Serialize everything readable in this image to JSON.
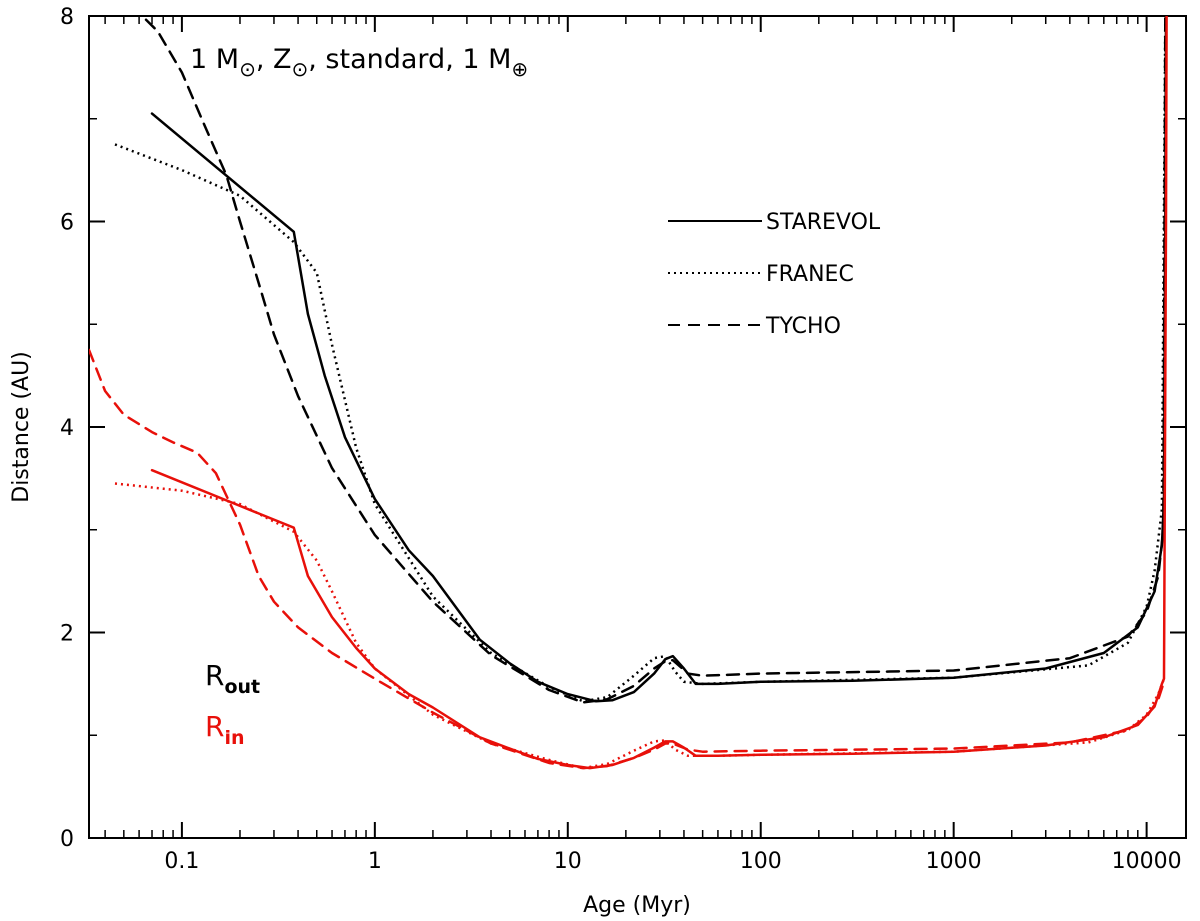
{
  "chart_data": {
    "type": "line",
    "title": {
      "main": "1 M",
      "sub1": "⊙",
      "sep1": ", Z",
      "sub2": "⊙",
      "sep2": ", standard, 1 M",
      "sub3": "⊕"
    },
    "xlabel": "Age (Myr)",
    "ylabel": "Distance (AU)",
    "xscale": "log",
    "xlim": [
      0.033,
      16000
    ],
    "ylim": [
      0,
      8
    ],
    "x_ticks": [
      {
        "value": 0.1,
        "label": "0.1"
      },
      {
        "value": 1,
        "label": "1"
      },
      {
        "value": 10,
        "label": "10"
      },
      {
        "value": 100,
        "label": "100"
      },
      {
        "value": 1000,
        "label": "1000"
      },
      {
        "value": 10000,
        "label": "10000"
      }
    ],
    "y_ticks": [
      {
        "value": 0,
        "label": "0"
      },
      {
        "value": 2,
        "label": "2"
      },
      {
        "value": 4,
        "label": "4"
      },
      {
        "value": 6,
        "label": "6"
      },
      {
        "value": 8,
        "label": "8"
      }
    ],
    "grid": false,
    "legend": {
      "placement": "top-right",
      "entries": [
        {
          "label": "STAREVOL",
          "dash": "solid"
        },
        {
          "label": "FRANEC",
          "dash": "dotted"
        },
        {
          "label": "TYCHO",
          "dash": "dashed"
        }
      ]
    },
    "group_labels": [
      {
        "main": "R",
        "sub": "out",
        "color": "#000000"
      },
      {
        "main": "R",
        "sub": "in",
        "color": "#e8100a"
      }
    ],
    "colors": {
      "outer": "#000000",
      "inner": "#e8100a"
    },
    "series": [
      {
        "model": "STAREVOL",
        "boundary": "outer",
        "dash": "solid",
        "color": "#000000",
        "points": [
          [
            0.07,
            7.05
          ],
          [
            0.38,
            5.9
          ],
          [
            0.45,
            5.1
          ],
          [
            0.55,
            4.5
          ],
          [
            0.7,
            3.9
          ],
          [
            1,
            3.3
          ],
          [
            1.5,
            2.8
          ],
          [
            2,
            2.55
          ],
          [
            3.5,
            1.93
          ],
          [
            5,
            1.7
          ],
          [
            7,
            1.52
          ],
          [
            10,
            1.4
          ],
          [
            14,
            1.33
          ],
          [
            17,
            1.34
          ],
          [
            22,
            1.42
          ],
          [
            28,
            1.6
          ],
          [
            32,
            1.74
          ],
          [
            35,
            1.77
          ],
          [
            40,
            1.65
          ],
          [
            46,
            1.5
          ],
          [
            60,
            1.5
          ],
          [
            100,
            1.52
          ],
          [
            300,
            1.53
          ],
          [
            1000,
            1.56
          ],
          [
            3000,
            1.65
          ],
          [
            6000,
            1.8
          ],
          [
            9000,
            2.05
          ],
          [
            11000,
            2.4
          ],
          [
            12000,
            2.85
          ],
          [
            12300,
            3.3
          ],
          [
            12500,
            6
          ],
          [
            12600,
            8
          ]
        ]
      },
      {
        "model": "FRANEC",
        "boundary": "outer",
        "dash": "dotted",
        "color": "#000000",
        "points": [
          [
            0.045,
            6.75
          ],
          [
            0.1,
            6.5
          ],
          [
            0.2,
            6.25
          ],
          [
            0.38,
            5.8
          ],
          [
            0.5,
            5.5
          ],
          [
            0.6,
            4.8
          ],
          [
            0.8,
            3.8
          ],
          [
            1,
            3.25
          ],
          [
            2,
            2.35
          ],
          [
            4,
            1.8
          ],
          [
            8,
            1.47
          ],
          [
            12,
            1.33
          ],
          [
            16,
            1.37
          ],
          [
            22,
            1.58
          ],
          [
            28,
            1.75
          ],
          [
            32,
            1.77
          ],
          [
            36,
            1.62
          ],
          [
            40,
            1.52
          ],
          [
            50,
            1.5
          ],
          [
            100,
            1.52
          ],
          [
            1000,
            1.56
          ],
          [
            5000,
            1.68
          ],
          [
            8000,
            1.9
          ],
          [
            10000,
            2.25
          ],
          [
            11000,
            2.6
          ],
          [
            12000,
            3.2
          ],
          [
            12500,
            8
          ]
        ]
      },
      {
        "model": "TYCHO",
        "boundary": "outer",
        "dash": "dashed",
        "color": "#000000",
        "points": [
          [
            0.055,
            8.1
          ],
          [
            0.075,
            7.85
          ],
          [
            0.1,
            7.45
          ],
          [
            0.13,
            6.95
          ],
          [
            0.17,
            6.45
          ],
          [
            0.2,
            6.0
          ],
          [
            0.25,
            5.4
          ],
          [
            0.3,
            4.9
          ],
          [
            0.4,
            4.3
          ],
          [
            0.6,
            3.6
          ],
          [
            1,
            2.95
          ],
          [
            2,
            2.3
          ],
          [
            4,
            1.78
          ],
          [
            8,
            1.44
          ],
          [
            12,
            1.32
          ],
          [
            16,
            1.35
          ],
          [
            22,
            1.48
          ],
          [
            28,
            1.65
          ],
          [
            32,
            1.72
          ],
          [
            35,
            1.73
          ],
          [
            42,
            1.6
          ],
          [
            50,
            1.58
          ],
          [
            100,
            1.6
          ],
          [
            1000,
            1.63
          ],
          [
            4000,
            1.75
          ],
          [
            8000,
            1.96
          ],
          [
            10000,
            2.2
          ],
          [
            11500,
            2.55
          ],
          [
            12200,
            3.0
          ],
          [
            12500,
            8
          ]
        ]
      },
      {
        "model": "STAREVOL",
        "boundary": "inner",
        "dash": "solid",
        "color": "#e8100a",
        "points": [
          [
            0.07,
            3.58
          ],
          [
            0.38,
            3.02
          ],
          [
            0.45,
            2.55
          ],
          [
            0.6,
            2.15
          ],
          [
            0.8,
            1.85
          ],
          [
            1,
            1.65
          ],
          [
            1.5,
            1.4
          ],
          [
            2,
            1.27
          ],
          [
            3.5,
            0.98
          ],
          [
            5,
            0.87
          ],
          [
            7,
            0.77
          ],
          [
            10,
            0.71
          ],
          [
            13,
            0.68
          ],
          [
            17,
            0.71
          ],
          [
            22,
            0.78
          ],
          [
            28,
            0.88
          ],
          [
            32,
            0.94
          ],
          [
            35,
            0.94
          ],
          [
            40,
            0.88
          ],
          [
            46,
            0.8
          ],
          [
            60,
            0.8
          ],
          [
            100,
            0.81
          ],
          [
            300,
            0.82
          ],
          [
            1000,
            0.84
          ],
          [
            3000,
            0.9
          ],
          [
            6000,
            0.98
          ],
          [
            9000,
            1.1
          ],
          [
            11000,
            1.28
          ],
          [
            12000,
            1.5
          ],
          [
            12300,
            1.55
          ],
          [
            12600,
            6
          ],
          [
            12700,
            8
          ]
        ]
      },
      {
        "model": "FRANEC",
        "boundary": "inner",
        "dash": "dotted",
        "color": "#e8100a",
        "points": [
          [
            0.045,
            3.45
          ],
          [
            0.1,
            3.38
          ],
          [
            0.2,
            3.25
          ],
          [
            0.38,
            2.98
          ],
          [
            0.5,
            2.7
          ],
          [
            0.6,
            2.4
          ],
          [
            0.8,
            1.9
          ],
          [
            1,
            1.65
          ],
          [
            2,
            1.2
          ],
          [
            4,
            0.92
          ],
          [
            8,
            0.76
          ],
          [
            12,
            0.68
          ],
          [
            16,
            0.72
          ],
          [
            22,
            0.85
          ],
          [
            28,
            0.94
          ],
          [
            32,
            0.95
          ],
          [
            36,
            0.86
          ],
          [
            42,
            0.8
          ],
          [
            60,
            0.8
          ],
          [
            100,
            0.81
          ],
          [
            1000,
            0.84
          ],
          [
            5000,
            0.93
          ],
          [
            8000,
            1.05
          ],
          [
            10000,
            1.2
          ],
          [
            11500,
            1.4
          ],
          [
            12300,
            1.55
          ]
        ]
      },
      {
        "model": "TYCHO",
        "boundary": "inner",
        "dash": "dashed",
        "color": "#e8100a",
        "points": [
          [
            0.033,
            4.75
          ],
          [
            0.04,
            4.35
          ],
          [
            0.05,
            4.12
          ],
          [
            0.07,
            3.95
          ],
          [
            0.09,
            3.85
          ],
          [
            0.12,
            3.75
          ],
          [
            0.15,
            3.55
          ],
          [
            0.2,
            3.05
          ],
          [
            0.25,
            2.55
          ],
          [
            0.3,
            2.3
          ],
          [
            0.4,
            2.05
          ],
          [
            0.6,
            1.8
          ],
          [
            1,
            1.55
          ],
          [
            2,
            1.22
          ],
          [
            4,
            0.92
          ],
          [
            8,
            0.73
          ],
          [
            12,
            0.68
          ],
          [
            16,
            0.7
          ],
          [
            22,
            0.78
          ],
          [
            28,
            0.86
          ],
          [
            32,
            0.92
          ],
          [
            35,
            0.92
          ],
          [
            42,
            0.86
          ],
          [
            50,
            0.84
          ],
          [
            100,
            0.85
          ],
          [
            1000,
            0.87
          ],
          [
            4000,
            0.93
          ],
          [
            8000,
            1.05
          ],
          [
            10000,
            1.18
          ],
          [
            11500,
            1.35
          ],
          [
            12200,
            1.5
          ]
        ]
      }
    ]
  }
}
